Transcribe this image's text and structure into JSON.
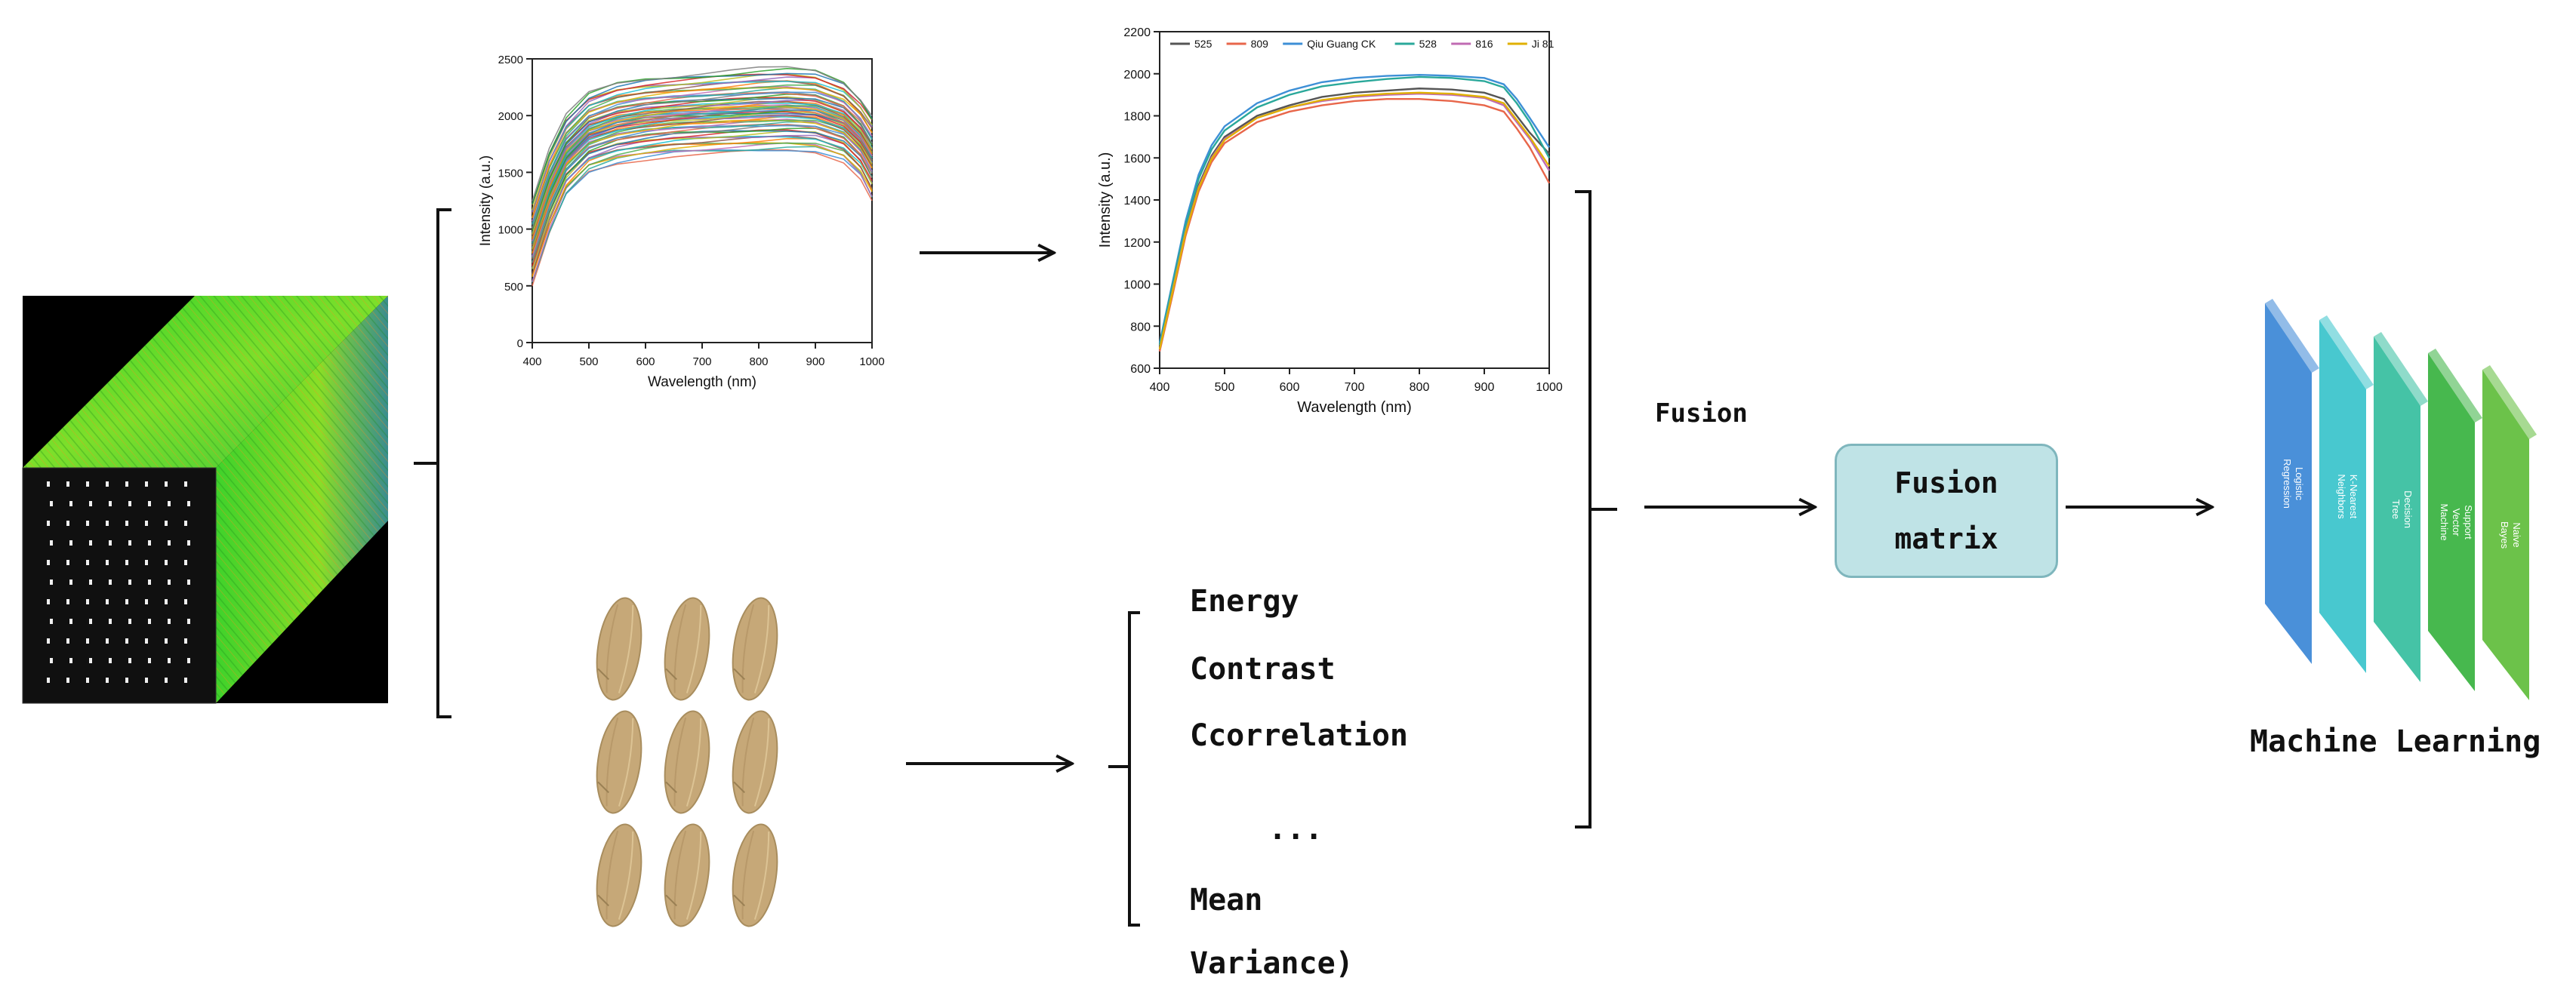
{
  "chart_data": [
    {
      "type": "line",
      "xlabel": "Wavelength (nm)",
      "ylabel": "Intensity (a.u.)",
      "xlim": [
        400,
        1000
      ],
      "ylim": [
        0,
        2500
      ],
      "x_ticks": [
        "400",
        "500",
        "600",
        "700",
        "800",
        "900",
        "1000"
      ],
      "y_ticks": [
        "0",
        "500",
        "1000",
        "1500",
        "2000",
        "2500"
      ],
      "series_count_approx": 60,
      "legend": "none",
      "x": [
        400,
        430,
        460,
        500,
        550,
        600,
        650,
        700,
        750,
        800,
        850,
        900,
        950,
        980,
        1000
      ],
      "envelope_high": [
        1250,
        1700,
        2000,
        2200,
        2290,
        2330,
        2350,
        2370,
        2390,
        2410,
        2420,
        2400,
        2300,
        2150,
        2000
      ],
      "envelope_low": [
        500,
        950,
        1300,
        1500,
        1580,
        1620,
        1650,
        1660,
        1670,
        1680,
        1690,
        1680,
        1600,
        1450,
        1250
      ]
    },
    {
      "type": "line",
      "xlabel": "Wavelength (nm)",
      "ylabel": "Intensity (a.u.)",
      "xlim": [
        400,
        1000
      ],
      "ylim": [
        600,
        2200
      ],
      "x_ticks": [
        "400",
        "500",
        "600",
        "700",
        "800",
        "900",
        "1000"
      ],
      "y_ticks": [
        "600",
        "800",
        "1000",
        "1200",
        "1400",
        "1600",
        "1800",
        "2000",
        "2200"
      ],
      "legend": "top",
      "x": [
        400,
        420,
        440,
        460,
        480,
        500,
        550,
        600,
        650,
        700,
        750,
        800,
        850,
        900,
        930,
        950,
        970,
        1000
      ],
      "series": [
        {
          "name": "525",
          "color": "#555555",
          "values": [
            700,
            980,
            1260,
            1470,
            1610,
            1700,
            1800,
            1850,
            1890,
            1910,
            1920,
            1930,
            1925,
            1910,
            1880,
            1800,
            1720,
            1620
          ]
        },
        {
          "name": "809",
          "color": "#e8664a",
          "values": [
            680,
            950,
            1230,
            1440,
            1580,
            1670,
            1770,
            1820,
            1850,
            1870,
            1880,
            1880,
            1870,
            1850,
            1820,
            1740,
            1650,
            1480
          ]
        },
        {
          "name": "Qiu Guang CK",
          "color": "#3d8fd6",
          "values": [
            720,
            1010,
            1300,
            1520,
            1660,
            1750,
            1860,
            1920,
            1960,
            1980,
            1990,
            1995,
            1990,
            1980,
            1950,
            1880,
            1790,
            1650
          ]
        },
        {
          "name": "528",
          "color": "#2aa89a",
          "values": [
            710,
            1000,
            1280,
            1500,
            1640,
            1730,
            1840,
            1900,
            1940,
            1960,
            1975,
            1985,
            1980,
            1965,
            1935,
            1860,
            1770,
            1600
          ]
        },
        {
          "name": "816",
          "color": "#c06bb3",
          "values": [
            690,
            970,
            1250,
            1460,
            1600,
            1690,
            1790,
            1840,
            1870,
            1890,
            1900,
            1905,
            1900,
            1885,
            1850,
            1770,
            1690,
            1540
          ]
        },
        {
          "name": "Ji 81",
          "color": "#e0b000",
          "values": [
            690,
            965,
            1245,
            1455,
            1595,
            1685,
            1790,
            1840,
            1875,
            1895,
            1905,
            1910,
            1905,
            1890,
            1860,
            1780,
            1700,
            1560
          ]
        }
      ]
    }
  ],
  "features": [
    "Energy",
    "Contrast",
    "Ccorrelation",
    "...",
    "Mean",
    "Variance)"
  ],
  "fusion_label": "Fusion",
  "fusion_box": [
    "Fusion",
    "matrix"
  ],
  "ml_caption": "Machine Learning",
  "ml_models": [
    {
      "lines": [
        "Logistic",
        "Regression"
      ],
      "color": "#4a90d9"
    },
    {
      "lines": [
        "K-Nearest",
        "Neighbors"
      ],
      "color": "#48c8cf"
    },
    {
      "lines": [
        "Decision",
        "Tree"
      ],
      "color": "#45c3a6"
    },
    {
      "lines": [
        "Support",
        "Vector",
        "Machine"
      ],
      "color": "#47b84e"
    },
    {
      "lines": [
        "Naive",
        "Bayes"
      ],
      "color": "#6cc24a"
    }
  ],
  "colors": {
    "arrow": "#111111",
    "cube_green": "#35d12a",
    "rice": "#c6a878",
    "fusion_box": "#bfe3e6"
  }
}
